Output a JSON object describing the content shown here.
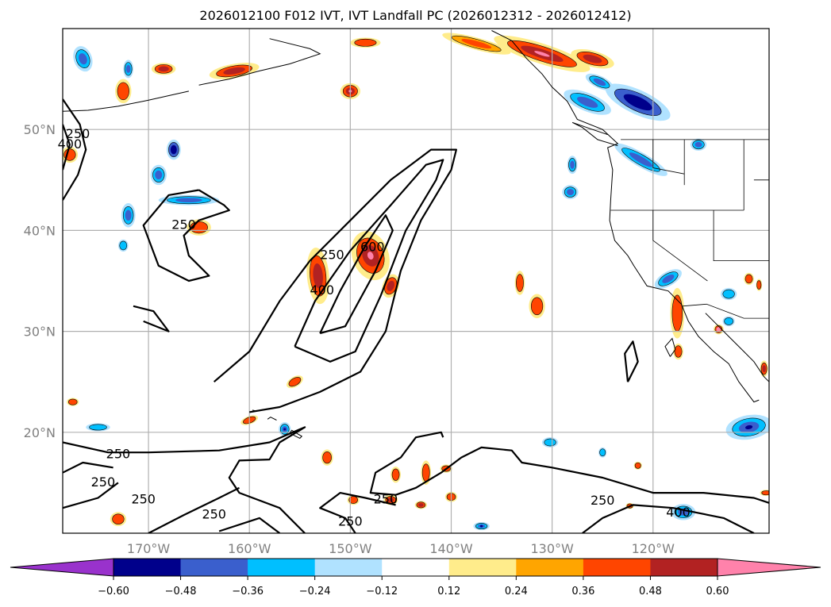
{
  "title": "2026012100 F012 IVT, IVT Landfall PC (2026012312 - 2026012412)",
  "chart_data": {
    "type": "heatmap",
    "subtype": "filled-contour map with line contours",
    "title": "2026012100 F012 IVT, IVT Landfall PC (2026012312 - 2026012412)",
    "projection": "cylindrical lat-lon",
    "extent": {
      "lon": [
        -178.5,
        -108.5
      ],
      "lat": [
        10,
        60
      ]
    },
    "grid": true,
    "x_ticks": [
      "170°W",
      "160°W",
      "150°W",
      "140°W",
      "130°W",
      "120°W"
    ],
    "x_tick_values": [
      -170,
      -160,
      -150,
      -140,
      -130,
      -120
    ],
    "y_ticks": [
      "20°N",
      "30°N",
      "40°N",
      "50°N"
    ],
    "y_tick_values": [
      20,
      30,
      40,
      50
    ],
    "filled_field": "IVT Landfall PC",
    "contour_field": "IVT",
    "contour_levels": [
      250,
      400,
      600
    ],
    "contour_labels": [
      {
        "text": "250",
        "lon": -177,
        "lat": 49.5
      },
      {
        "text": "400",
        "lon": -177.8,
        "lat": 48.5
      },
      {
        "text": "250",
        "lon": -166.5,
        "lat": 40.5
      },
      {
        "text": "250",
        "lon": -151.8,
        "lat": 37.5
      },
      {
        "text": "400",
        "lon": -152.8,
        "lat": 34
      },
      {
        "text": "600",
        "lon": -147.8,
        "lat": 38.3
      },
      {
        "text": "250",
        "lon": -173,
        "lat": 17.8
      },
      {
        "text": "250",
        "lon": -174.5,
        "lat": 15
      },
      {
        "text": "250",
        "lon": -170.5,
        "lat": 13.3
      },
      {
        "text": "250",
        "lon": -163.5,
        "lat": 11.8
      },
      {
        "text": "250",
        "lon": -146.5,
        "lat": 13.3
      },
      {
        "text": "250",
        "lon": -150,
        "lat": 11.1
      },
      {
        "text": "250",
        "lon": -125,
        "lat": 13.2
      },
      {
        "text": "400",
        "lon": -117.5,
        "lat": 12
      }
    ],
    "colorbar": {
      "orientation": "horizontal",
      "extend": "both",
      "ticks": [
        "−0.60",
        "−0.48",
        "−0.36",
        "−0.24",
        "−0.12",
        "0.12",
        "0.24",
        "0.36",
        "0.48",
        "0.60"
      ],
      "tick_values": [
        -0.6,
        -0.48,
        -0.36,
        -0.24,
        -0.12,
        0.12,
        0.24,
        0.36,
        0.48,
        0.6
      ],
      "colors": [
        "#9932CC",
        "#00008B",
        "#3A5FCD",
        "#00BFFF",
        "#B0E2FF",
        "#FFFFFF",
        "#FFEC8B",
        "#FFA500",
        "#FF4500",
        "#B22222",
        "#FF82AB"
      ]
    },
    "features": [
      {
        "kind": "ivt_plume",
        "description": "Atmospheric river IVT plume from ~20N,165W to ~47N,140W, contours 250/400/600"
      },
      {
        "kind": "positive_pc",
        "region": "Gulf of Alaska / SE Alaska coast",
        "max_bin": "0.48-0.60+"
      },
      {
        "kind": "positive_pc",
        "region": "AR core near 37N,148W",
        "max_bin": "0.48-0.60"
      },
      {
        "kind": "negative_pc",
        "region": "British Columbia / Washington interior",
        "min_bin": "-0.60 to -0.48"
      },
      {
        "kind": "negative_pc",
        "region": "near 48N,167W",
        "min_bin": "-0.60 to -0.48"
      },
      {
        "kind": "negative_pc",
        "region": "Mexico near 20N,110W",
        "min_bin": "-0.48 to -0.36"
      }
    ]
  }
}
